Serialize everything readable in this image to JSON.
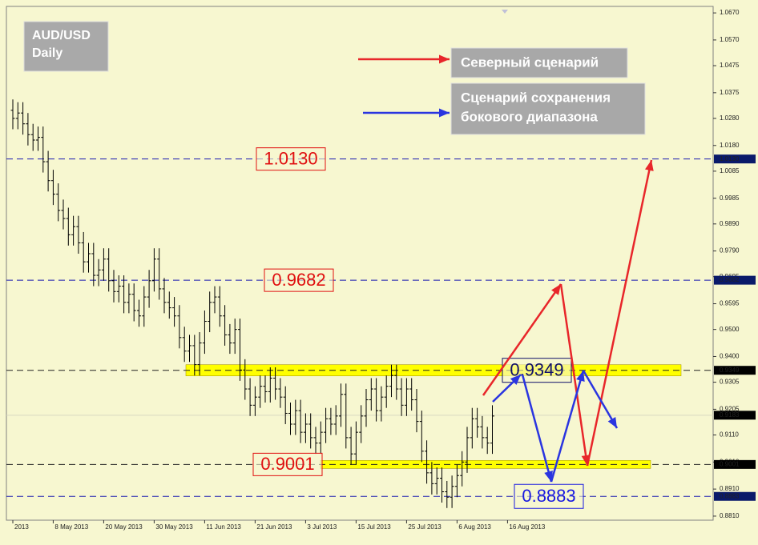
{
  "chart_data": {
    "type": "ohlc",
    "title": "AUD/USD",
    "subtitle": "Daily",
    "color": "#000000",
    "categories": [
      "2013",
      null,
      null,
      null,
      null,
      null,
      null,
      null,
      "8 May 2013",
      null,
      null,
      null,
      null,
      null,
      null,
      null,
      null,
      null,
      "20 May 2013",
      null,
      null,
      null,
      null,
      null,
      null,
      null,
      null,
      null,
      "30 May 2013",
      null,
      null,
      null,
      null,
      null,
      null,
      null,
      null,
      null,
      "11 Jun 2013",
      null,
      null,
      null,
      null,
      null,
      null,
      null,
      null,
      null,
      "21 Jun 2013",
      null,
      null,
      null,
      null,
      null,
      null,
      null,
      null,
      null,
      "3 Jul 2013",
      null,
      null,
      null,
      null,
      null,
      null,
      null,
      null,
      null,
      "15 Jul 2013",
      null,
      null,
      null,
      null,
      null,
      null,
      null,
      null,
      null,
      "25 Jul 2013",
      null,
      null,
      null,
      null,
      null,
      null,
      null,
      null,
      null,
      "6 Aug 2013",
      null,
      null,
      null,
      null,
      null,
      null,
      null,
      null,
      null,
      "16 Aug 2013",
      null
    ],
    "open": [
      1.031,
      1.028,
      1.03,
      1.026,
      1.022,
      1.02,
      1.021,
      1.012,
      1.005,
      1.0,
      0.994,
      0.991,
      0.985,
      0.988,
      0.982,
      0.975,
      0.978,
      0.97,
      0.972,
      0.976,
      0.968,
      0.964,
      0.966,
      0.96,
      0.963,
      0.957,
      0.955,
      0.962,
      0.968,
      0.976,
      0.965,
      0.96,
      0.958,
      0.955,
      0.947,
      0.942,
      0.944,
      0.937,
      0.945,
      0.953,
      0.96,
      0.962,
      0.955,
      0.948,
      0.945,
      0.95,
      0.935,
      0.928,
      0.922,
      0.925,
      0.929,
      0.927,
      0.932,
      0.928,
      0.925,
      0.919,
      0.915,
      0.92,
      0.912,
      0.915,
      0.91,
      0.908,
      0.912,
      0.917,
      0.915,
      0.918,
      0.926,
      0.91,
      0.904,
      0.912,
      0.918,
      0.924,
      0.928,
      0.92,
      0.925,
      0.929,
      0.933,
      0.928,
      0.922,
      0.928,
      0.924,
      0.916,
      0.905,
      0.897,
      0.893,
      0.895,
      0.89,
      0.888,
      0.892,
      0.896,
      0.901,
      0.91,
      0.917,
      0.914,
      0.91,
      0.908,
      null,
      null,
      null,
      null
    ],
    "high": [
      1.035,
      1.034,
      1.034,
      1.03,
      1.026,
      1.025,
      1.025,
      1.016,
      1.009,
      1.004,
      0.998,
      0.995,
      0.992,
      0.992,
      0.986,
      0.982,
      0.982,
      0.976,
      0.98,
      0.98,
      0.972,
      0.97,
      0.97,
      0.967,
      0.967,
      0.961,
      0.966,
      0.972,
      0.98,
      0.98,
      0.969,
      0.964,
      0.962,
      0.959,
      0.951,
      0.948,
      0.948,
      0.949,
      0.957,
      0.964,
      0.966,
      0.966,
      0.959,
      0.952,
      0.954,
      0.954,
      0.939,
      0.932,
      0.929,
      0.933,
      0.933,
      0.936,
      0.936,
      0.932,
      0.929,
      0.923,
      0.924,
      0.924,
      0.919,
      0.919,
      0.914,
      0.916,
      0.921,
      0.921,
      0.922,
      0.93,
      0.93,
      0.914,
      0.916,
      0.922,
      0.928,
      0.932,
      0.932,
      0.929,
      0.933,
      0.937,
      0.937,
      0.932,
      0.932,
      0.932,
      0.928,
      0.92,
      0.909,
      0.901,
      0.899,
      0.899,
      0.894,
      0.896,
      0.9,
      0.905,
      0.914,
      0.921,
      0.921,
      0.918,
      0.914,
      0.922,
      null,
      null,
      null,
      null
    ],
    "low": [
      1.024,
      1.024,
      1.022,
      1.018,
      1.016,
      1.016,
      1.008,
      1.001,
      0.996,
      0.99,
      0.987,
      0.981,
      0.981,
      0.978,
      0.971,
      0.971,
      0.966,
      0.966,
      0.968,
      0.964,
      0.96,
      0.96,
      0.956,
      0.956,
      0.953,
      0.951,
      0.951,
      0.958,
      0.964,
      0.961,
      0.956,
      0.954,
      0.951,
      0.943,
      0.938,
      0.938,
      0.933,
      0.933,
      0.941,
      0.949,
      0.956,
      0.951,
      0.944,
      0.941,
      0.941,
      0.931,
      0.924,
      0.918,
      0.918,
      0.921,
      0.923,
      0.923,
      0.924,
      0.921,
      0.915,
      0.911,
      0.911,
      0.908,
      0.908,
      0.906,
      0.904,
      0.904,
      0.908,
      0.911,
      0.911,
      0.914,
      0.906,
      0.9,
      0.9,
      0.908,
      0.914,
      0.92,
      0.916,
      0.916,
      0.921,
      0.925,
      0.924,
      0.918,
      0.918,
      0.92,
      0.912,
      0.901,
      0.893,
      0.889,
      0.889,
      0.886,
      0.884,
      0.884,
      0.888,
      0.892,
      0.897,
      0.906,
      0.91,
      0.906,
      0.904,
      0.904,
      null,
      null,
      null,
      null
    ],
    "close": [
      1.028,
      1.03,
      1.026,
      1.022,
      1.02,
      1.021,
      1.012,
      1.005,
      1.0,
      0.994,
      0.991,
      0.985,
      0.988,
      0.982,
      0.975,
      0.978,
      0.97,
      0.972,
      0.976,
      0.968,
      0.964,
      0.966,
      0.96,
      0.963,
      0.957,
      0.955,
      0.962,
      0.968,
      0.976,
      0.965,
      0.96,
      0.958,
      0.955,
      0.947,
      0.942,
      0.944,
      0.937,
      0.945,
      0.953,
      0.96,
      0.962,
      0.955,
      0.948,
      0.945,
      0.95,
      0.935,
      0.928,
      0.922,
      0.925,
      0.929,
      0.927,
      0.932,
      0.928,
      0.925,
      0.919,
      0.915,
      0.92,
      0.912,
      0.915,
      0.91,
      0.908,
      0.912,
      0.917,
      0.915,
      0.918,
      0.926,
      0.91,
      0.904,
      0.912,
      0.918,
      0.924,
      0.928,
      0.92,
      0.925,
      0.929,
      0.933,
      0.928,
      0.922,
      0.928,
      0.924,
      0.916,
      0.905,
      0.897,
      0.893,
      0.895,
      0.89,
      0.888,
      0.892,
      0.896,
      0.901,
      0.91,
      0.917,
      0.914,
      0.91,
      0.908,
      0.918,
      null,
      null,
      null,
      null
    ],
    "ylim": [
      0.8795,
      1.0694
    ],
    "yticks": [
      {
        "value": 1.067,
        "label": "1.0670"
      },
      {
        "value": 1.057,
        "label": "1.0570"
      },
      {
        "value": 1.0475,
        "label": "1.0475"
      },
      {
        "value": 1.0375,
        "label": "1.0375"
      },
      {
        "value": 1.028,
        "label": "1.0280"
      },
      {
        "value": 1.018,
        "label": "1.0180"
      },
      {
        "value": 1.0085,
        "label": "1.0085"
      },
      {
        "value": 0.9985,
        "label": "0.9985"
      },
      {
        "value": 0.989,
        "label": "0.9890"
      },
      {
        "value": 0.979,
        "label": "0.9790"
      },
      {
        "value": 0.9695,
        "label": "0.9695"
      },
      {
        "value": 0.9595,
        "label": "0.9595"
      },
      {
        "value": 0.95,
        "label": "0.9500"
      },
      {
        "value": 0.94,
        "label": "0.9400"
      },
      {
        "value": 0.9305,
        "label": "0.9305"
      },
      {
        "value": 0.9205,
        "label": "0.9205"
      },
      {
        "value": 0.911,
        "label": "0.9110"
      },
      {
        "value": 0.901,
        "label": "0.9010"
      },
      {
        "value": 0.891,
        "label": "0.8910"
      },
      {
        "value": 0.881,
        "label": "0.8810"
      }
    ],
    "levels": [
      {
        "value": 1.013,
        "label": "1.0130",
        "color": "#e01010",
        "band": false
      },
      {
        "value": 0.9682,
        "label": "0.9682",
        "color": "#e01010",
        "band": false
      },
      {
        "value": 0.9349,
        "label": "0.9349",
        "color": "#10106a",
        "band": true
      },
      {
        "value": 0.9001,
        "label": "0.9001",
        "color": "#e01010",
        "band": true
      },
      {
        "value": 0.8883,
        "label": "0.8883",
        "color": "#1a1ae0",
        "band": false
      }
    ],
    "current_price": {
      "value": 0.9183,
      "label": "0.9183"
    },
    "legend": [
      {
        "lines": [
          "Северный сценарий"
        ],
        "color": "#e8262a"
      },
      {
        "lines": [
          "Сценарий сохранения",
          "бокового диапазона"
        ],
        "color": "#2a35e0"
      }
    ]
  }
}
